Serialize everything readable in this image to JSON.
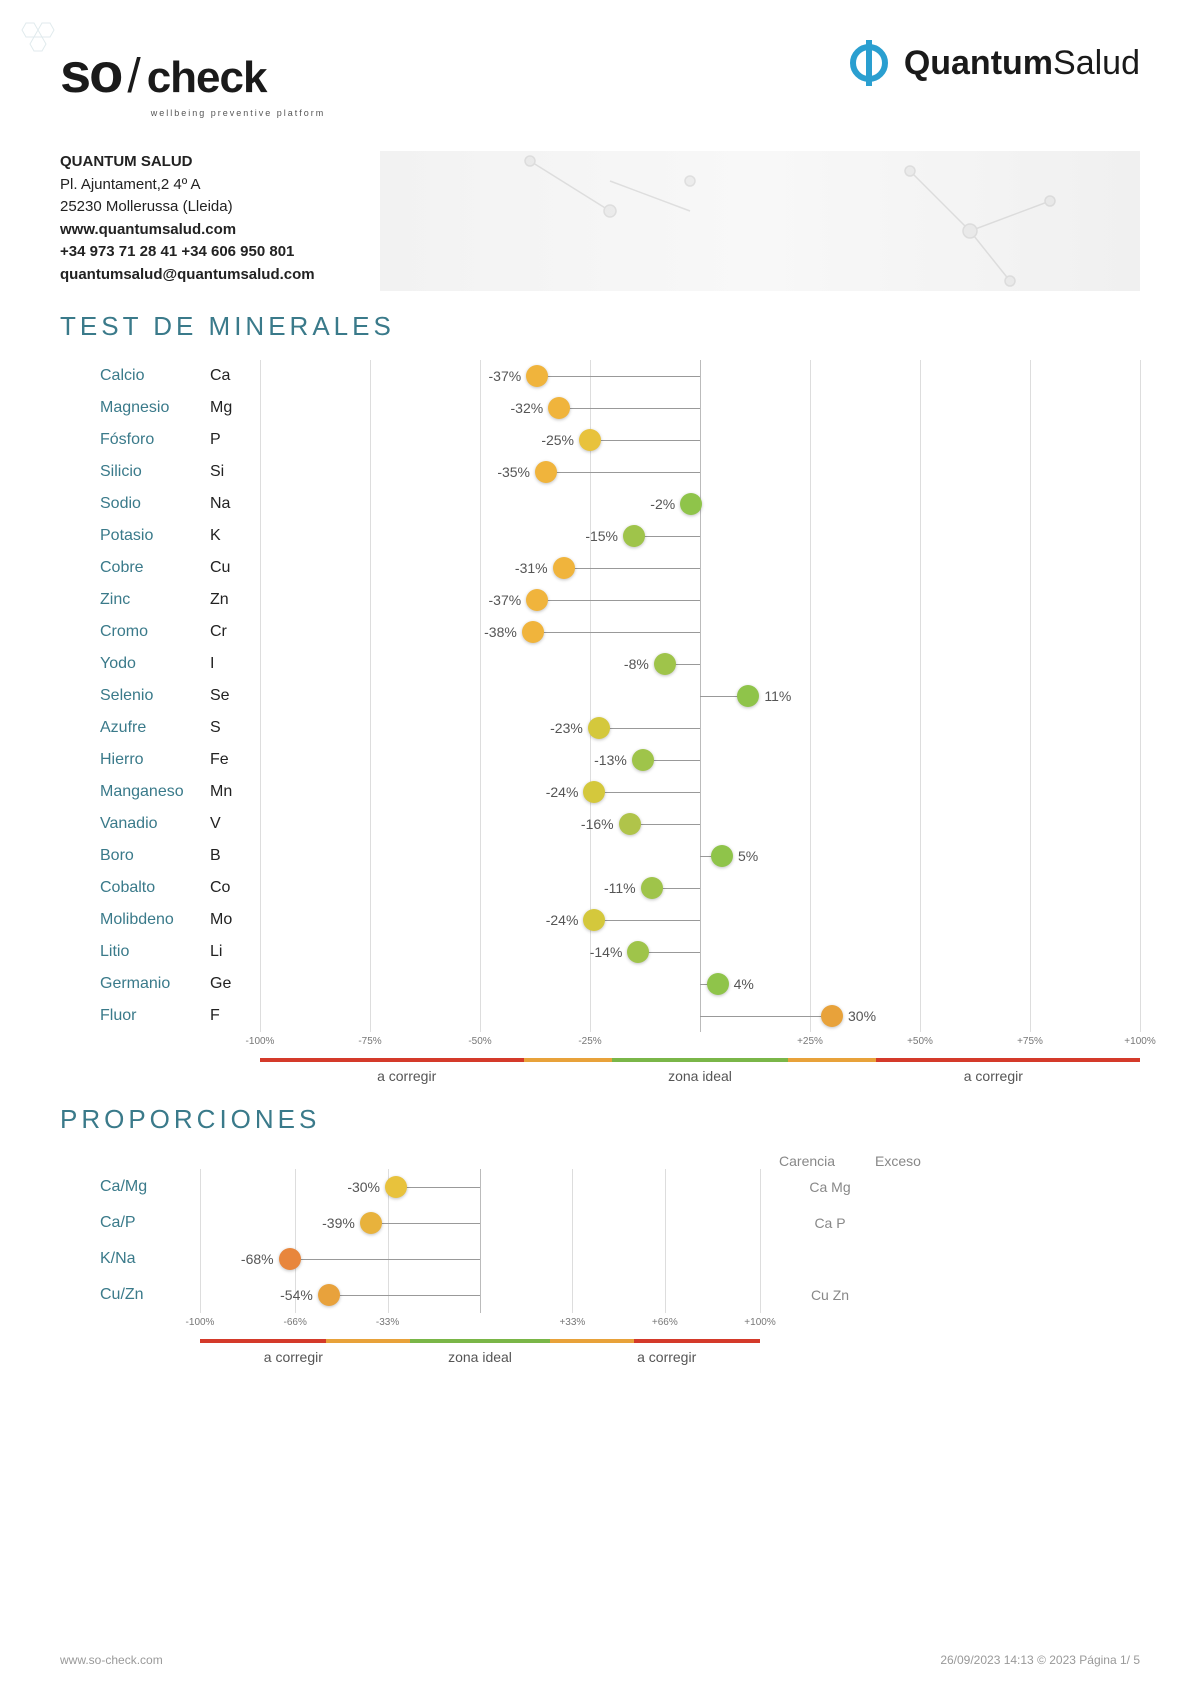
{
  "logos": {
    "left_so": "so",
    "left_check": "check",
    "left_tagline": "wellbeing preventive platform",
    "right_bold": "Quantum",
    "right_light": "Salud"
  },
  "address": {
    "company": "QUANTUM SALUD",
    "line1": "Pl. Ajuntament,2  4º A",
    "line2": "25230 Mollerussa (Lleida)",
    "web": "www.quantumsalud.com",
    "phone": "+34 973 71 28 41 +34 606 950 801",
    "email": "quantumsalud@quantumsalud.com"
  },
  "section1_title": "TEST DE MINERALES",
  "section2_title": "PROPORCIONES",
  "axis1": {
    "range": [
      -100,
      100
    ],
    "ticks": [
      -100,
      -75,
      -50,
      -25,
      0,
      25,
      50,
      75,
      100
    ],
    "tick_labels": [
      "-100%",
      "-75%",
      "-50%",
      "-25%",
      "",
      "+25%",
      "+50%",
      "+75%",
      "+100%"
    ],
    "zone_left": "a corregir",
    "zone_mid": "zona ideal",
    "zone_right": "a corregir",
    "zone_colors": {
      "bad": "#d43a2a",
      "warn": "#e8a23a",
      "good": "#7ab648"
    },
    "ideal_from": -20,
    "ideal_to": 20,
    "warn_from": -40,
    "warn_to": 40
  },
  "minerals": [
    {
      "name": "Calcio",
      "sym": "Ca",
      "pct": -37,
      "color": "#f0b43c"
    },
    {
      "name": "Magnesio",
      "sym": "Mg",
      "pct": -32,
      "color": "#f0b43c"
    },
    {
      "name": "Fósforo",
      "sym": "P",
      "pct": -25,
      "color": "#e8c23c"
    },
    {
      "name": "Silicio",
      "sym": "Si",
      "pct": -35,
      "color": "#f0b43c"
    },
    {
      "name": "Sodio",
      "sym": "Na",
      "pct": -2,
      "color": "#8fc44a"
    },
    {
      "name": "Potasio",
      "sym": "K",
      "pct": -15,
      "color": "#9fc44a"
    },
    {
      "name": "Cobre",
      "sym": "Cu",
      "pct": -31,
      "color": "#f0b43c"
    },
    {
      "name": "Zinc",
      "sym": "Zn",
      "pct": -37,
      "color": "#f0b43c"
    },
    {
      "name": "Cromo",
      "sym": "Cr",
      "pct": -38,
      "color": "#f0b43c"
    },
    {
      "name": "Yodo",
      "sym": "I",
      "pct": -8,
      "color": "#9fc44a"
    },
    {
      "name": "Selenio",
      "sym": "Se",
      "pct": 11,
      "color": "#8fc44a"
    },
    {
      "name": "Azufre",
      "sym": "S",
      "pct": -23,
      "color": "#d4c83c"
    },
    {
      "name": "Hierro",
      "sym": "Fe",
      "pct": -13,
      "color": "#9fc44a"
    },
    {
      "name": "Manganeso",
      "sym": "Mn",
      "pct": -24,
      "color": "#d4c83c"
    },
    {
      "name": "Vanadio",
      "sym": "V",
      "pct": -16,
      "color": "#b0c44a"
    },
    {
      "name": "Boro",
      "sym": "B",
      "pct": 5,
      "color": "#8fc44a"
    },
    {
      "name": "Cobalto",
      "sym": "Co",
      "pct": -11,
      "color": "#9fc44a"
    },
    {
      "name": "Molibdeno",
      "sym": "Mo",
      "pct": -24,
      "color": "#d4c83c"
    },
    {
      "name": "Litio",
      "sym": "Li",
      "pct": -14,
      "color": "#9fc44a"
    },
    {
      "name": "Germanio",
      "sym": "Ge",
      "pct": 4,
      "color": "#8fc44a"
    },
    {
      "name": "Fluor",
      "sym": "F",
      "pct": 30,
      "color": "#e8a23a"
    }
  ],
  "axis2": {
    "range": [
      -100,
      100
    ],
    "ticks": [
      -100,
      -66,
      -33,
      0,
      33,
      66,
      100
    ],
    "tick_labels": [
      "-100%",
      "-66%",
      "-33%",
      "",
      "+33%",
      "+66%",
      "+100%"
    ],
    "zone_left": "a corregir",
    "zone_mid": "zona ideal",
    "zone_right": "a corregir",
    "ideal_from": -25,
    "ideal_to": 25,
    "warn_from": -55,
    "warn_to": 55
  },
  "ratio_header": {
    "carencia": "Carencia",
    "exceso": "Exceso"
  },
  "ratios": [
    {
      "name": "Ca/Mg",
      "pct": -30,
      "color": "#e8c23c",
      "carencia": "Ca Mg",
      "exceso": ""
    },
    {
      "name": "Ca/P",
      "pct": -39,
      "color": "#e8b23c",
      "carencia": "Ca P",
      "exceso": ""
    },
    {
      "name": "K/Na",
      "pct": -68,
      "color": "#e8863c",
      "carencia": "",
      "exceso": ""
    },
    {
      "name": "Cu/Zn",
      "pct": -54,
      "color": "#e8a23c",
      "carencia": "Cu Zn",
      "exceso": ""
    }
  ],
  "footer": {
    "left": "www.so-check.com",
    "right": "26/09/2023 14:13 © 2023 Página 1/ 5"
  },
  "colors": {
    "title": "#3a7a8a",
    "accent_blue": "#2a9fd0",
    "grid": "#dddddd",
    "text": "#333333"
  }
}
